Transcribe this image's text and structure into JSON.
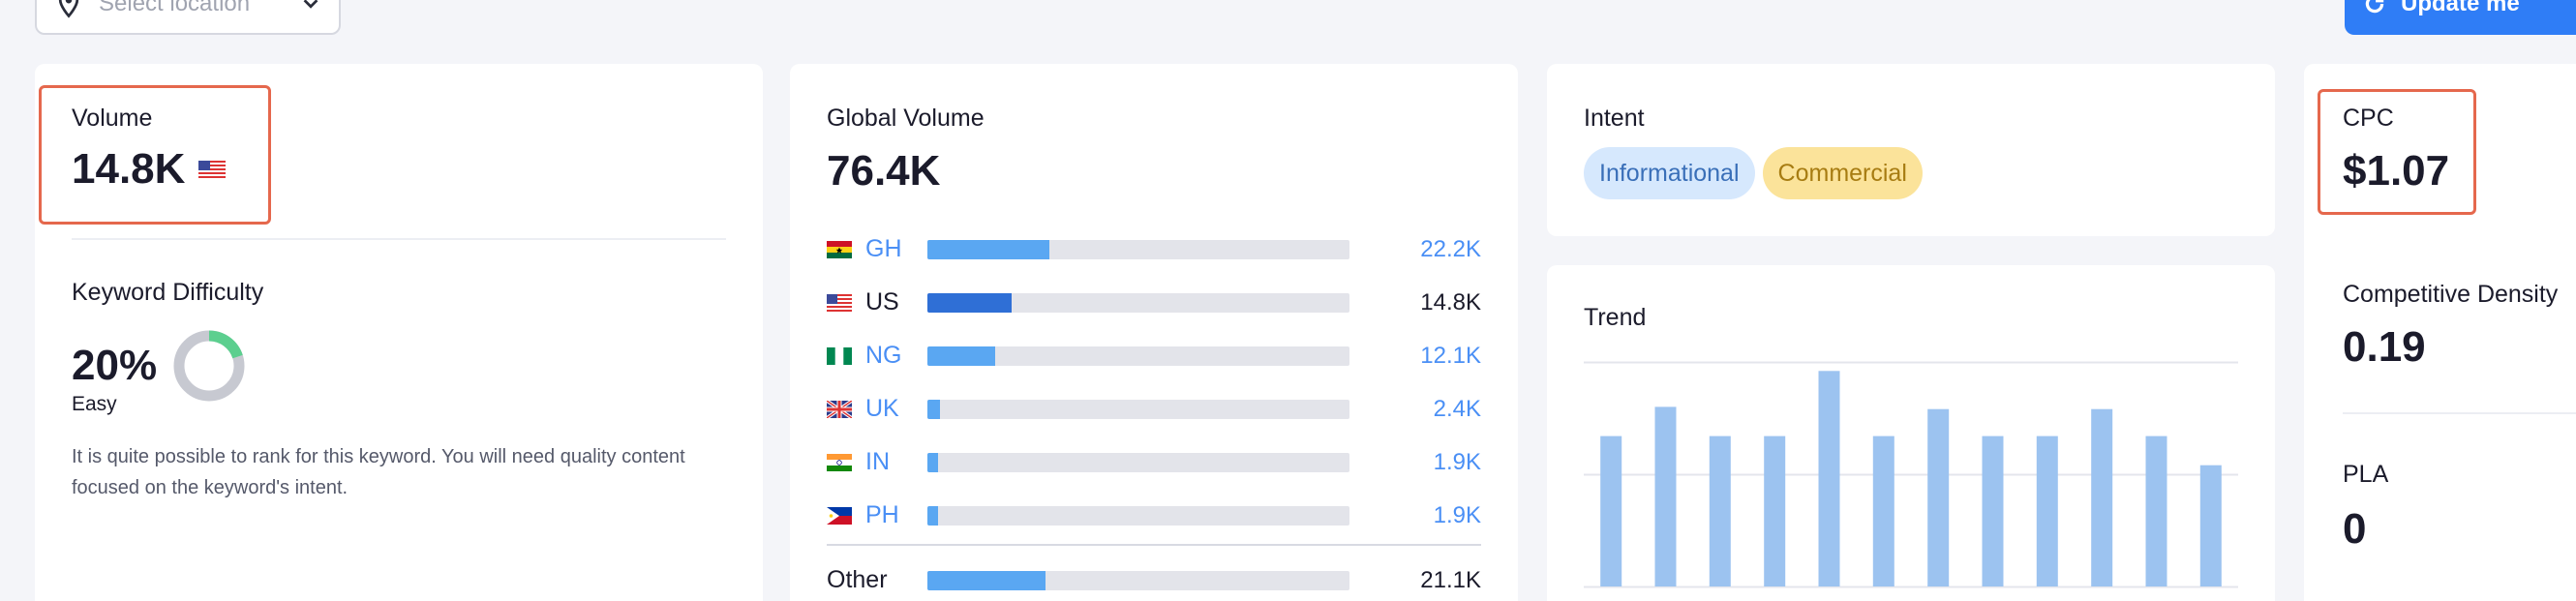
{
  "toolbar": {
    "location_placeholder": "Select location",
    "update_label": "Update me"
  },
  "volume": {
    "label": "Volume",
    "value": "14.8K"
  },
  "keyword_difficulty": {
    "label": "Keyword Difficulty",
    "value": "20%",
    "percent": 20,
    "level": "Easy",
    "description": "It is quite possible to rank for this keyword. You will need quality content focused on the keyword's intent.",
    "colors": {
      "fill": "#5ccf8f",
      "track": "#c7c9d1"
    }
  },
  "global_volume": {
    "label": "Global Volume",
    "value": "76.4K",
    "countries": [
      {
        "code": "GH",
        "value": "22.2K",
        "share": 0.29,
        "flag": "flag-gh-icon",
        "highlight": false
      },
      {
        "code": "US",
        "value": "14.8K",
        "share": 0.2,
        "flag": "flag-us-icon",
        "highlight": true
      },
      {
        "code": "NG",
        "value": "12.1K",
        "share": 0.16,
        "flag": "flag-ng-icon",
        "highlight": false
      },
      {
        "code": "UK",
        "value": "2.4K",
        "share": 0.03,
        "flag": "flag-uk-icon",
        "highlight": false
      },
      {
        "code": "IN",
        "value": "1.9K",
        "share": 0.025,
        "flag": "flag-in-icon",
        "highlight": false
      },
      {
        "code": "PH",
        "value": "1.9K",
        "share": 0.025,
        "flag": "flag-ph-icon",
        "highlight": false
      }
    ],
    "other": {
      "label": "Other",
      "value": "21.1K",
      "share": 0.28
    }
  },
  "intent": {
    "label": "Intent",
    "tags": [
      "Informational",
      "Commercial"
    ]
  },
  "trend": {
    "label": "Trend",
    "values": [
      0.67,
      0.8,
      0.67,
      0.67,
      0.96,
      0.67,
      0.79,
      0.67,
      0.67,
      0.79,
      0.67,
      0.54
    ],
    "bar_color": "#9cc3f0",
    "grid_color": "#e4e6ec"
  },
  "cpc": {
    "label": "CPC",
    "value": "$1.07"
  },
  "competitive_density": {
    "label": "Competitive Density",
    "value": "0.19"
  },
  "pla": {
    "label": "PLA",
    "value": "0"
  },
  "colors": {
    "accent": "#2f7df6",
    "highlight_border": "#e5684d",
    "bar_blue": "#5aa7f2",
    "bar_dark": "#2f6fd6",
    "link_blue": "#4a8ff5"
  }
}
